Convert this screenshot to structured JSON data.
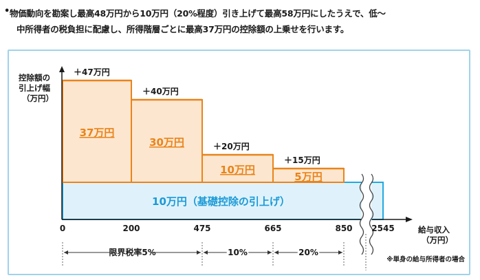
{
  "intro": {
    "bullet": "•",
    "line1": "物価動向を勘案し最高48万円から10万円（20%程度）引き上げて最高58万円にしたうえで、低～",
    "line2": "中所得者の税負担に配慮し、所得階層ごとに最高37万円の控除額の上乗せを行います。"
  },
  "colors": {
    "orange": "#e8841a",
    "orange_fill": "#fde6cf",
    "orange_text": "#e8841a",
    "blue": "#21a9df",
    "blue_fill": "#dff2fb",
    "blue_text": "#1b9ad6",
    "panel_border": "#9fd3ea"
  },
  "chart_data": {
    "type": "bar",
    "ylabel": [
      "控除額の",
      "引上げ幅",
      "（万円）"
    ],
    "xlabel": [
      "給与収入",
      "（万円）"
    ],
    "x_ticks": [
      "0",
      "200",
      "475",
      "665",
      "850",
      "2545"
    ],
    "base": {
      "value": 10,
      "label": "10万円（基礎控除の引上げ）",
      "x_range": [
        "0",
        "2545"
      ]
    },
    "tiers": [
      {
        "x_range": [
          "0",
          "200"
        ],
        "add": 37,
        "total": 47,
        "total_label": "＋47万円",
        "inner_label": "37万円"
      },
      {
        "x_range": [
          "200",
          "475"
        ],
        "add": 30,
        "total": 40,
        "total_label": "＋40万円",
        "inner_label": "30万円"
      },
      {
        "x_range": [
          "475",
          "665"
        ],
        "add": 10,
        "total": 20,
        "total_label": "＋20万円",
        "inner_label": "10万円"
      },
      {
        "x_range": [
          "665",
          "850"
        ],
        "add": 5,
        "total": 15,
        "total_label": "＋15万円",
        "inner_label": "5万円"
      }
    ],
    "rates": [
      {
        "label": "限界税率5%",
        "x_range": [
          "0",
          "475"
        ]
      },
      {
        "label": "10%",
        "x_range": [
          "475",
          "665"
        ]
      },
      {
        "label": "20%",
        "x_range": [
          "665",
          "850"
        ]
      }
    ],
    "note": "※単身の給与所得者の場合"
  }
}
